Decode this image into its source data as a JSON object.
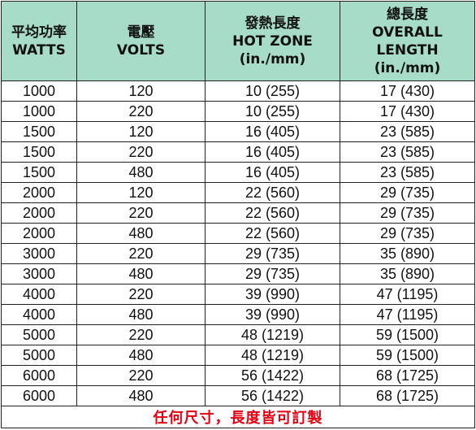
{
  "headers": [
    {
      "lines": [
        "平均功率",
        "WATTS"
      ]
    },
    {
      "lines": [
        "電壓",
        "VOLTS"
      ]
    },
    {
      "lines": [
        "發熱長度",
        "HOT ZONE",
        "(in./mm)"
      ]
    },
    {
      "lines": [
        "總長度",
        "OVERALL",
        "LENGTH",
        "(in./mm)"
      ]
    }
  ],
  "rows": [
    [
      "1000",
      "120",
      "10 (255)",
      "17 (430)"
    ],
    [
      "1000",
      "220",
      "10 (255)",
      "17 (430)"
    ],
    [
      "1500",
      "120",
      "16 (405)",
      "23 (585)"
    ],
    [
      "1500",
      "220",
      "16 (405)",
      "23 (585)"
    ],
    [
      "1500",
      "480",
      "16 (405)",
      "23 (585)"
    ],
    [
      "2000",
      "120",
      "22 (560)",
      "29 (735)"
    ],
    [
      "2000",
      "220",
      "22 (560)",
      "29 (735)"
    ],
    [
      "2000",
      "480",
      "22 (560)",
      "29 (735)"
    ],
    [
      "3000",
      "220",
      "29 (735)",
      "35 (890)"
    ],
    [
      "3000",
      "480",
      "29 (735)",
      "35 (890)"
    ],
    [
      "4000",
      "220",
      "39 (990)",
      "47 (1195)"
    ],
    [
      "4000",
      "480",
      "39 (990)",
      "47 (1195)"
    ],
    [
      "5000",
      "220",
      "48 (1219)",
      "59 (1500)"
    ],
    [
      "5000",
      "480",
      "48 (1219)",
      "59 (1500)"
    ],
    [
      "6000",
      "220",
      "56 (1422)",
      "68 (1725)"
    ],
    [
      "6000",
      "480",
      "56 (1422)",
      "68 (1725)"
    ]
  ],
  "footer": "任何尺寸，長度皆可訂製",
  "colors": {
    "header_bg": "#a7dcc9",
    "footer_text": "#e60012",
    "border": "#222222"
  }
}
